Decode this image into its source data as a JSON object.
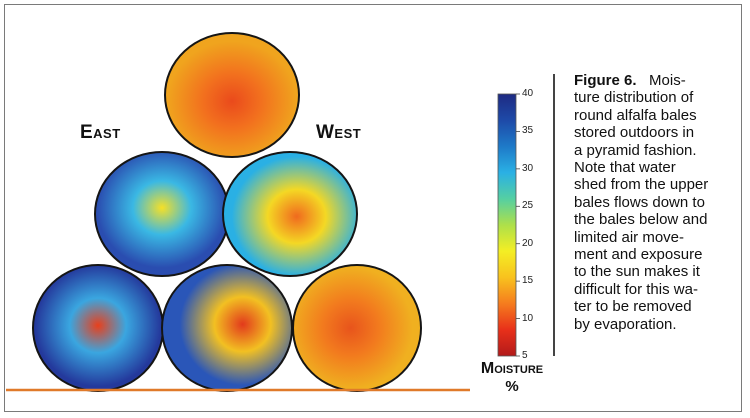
{
  "labels": {
    "east": "East",
    "west": "West"
  },
  "colorbar": {
    "title_line1": "Moisture",
    "title_line2": "%",
    "min": 5,
    "max": 40,
    "ticks": [
      "5",
      "10",
      "15",
      "20",
      "25",
      "30",
      "35",
      "40"
    ],
    "colors": [
      "#b21a1a",
      "#e8301a",
      "#f57c1e",
      "#f8c21e",
      "#f4ee24",
      "#aee04a",
      "#55cfa2",
      "#2ab0e4",
      "#1e7ac8",
      "#1e4aa8",
      "#1e2a82"
    ]
  },
  "caption": {
    "figure_label": "Figure 6.",
    "lines": [
      "Mois-",
      "ture distribution of",
      "round alfalfa bales",
      "stored outdoors in",
      "a pyramid fashion.",
      "Note that water",
      "shed from the upper",
      "bales flows down to",
      "the bales below and",
      "limited air move-",
      "ment and exposure",
      "to the sun makes it",
      "difficult for this wa-",
      "ter to be removed",
      "by evaporation."
    ]
  },
  "bales": [
    {
      "id": "top",
      "outer": "#f0a41e",
      "mid": "#f2701e",
      "core": "#ea4a1c"
    },
    {
      "id": "middle-east",
      "outer": "#2a4db0",
      "mid": "#3ab8e4",
      "core": "#f6e026"
    },
    {
      "id": "middle-west",
      "outer": "#2ab0e4",
      "mid": "#f4d824",
      "core": "#f06a1e"
    },
    {
      "id": "bottom-east",
      "outer": "#24399c",
      "mid": "#3aa6e0",
      "core": "#e8401c"
    },
    {
      "id": "bottom-center",
      "outer": "#2a56b8",
      "mid": "#f2c022",
      "core": "#e23a1c"
    },
    {
      "id": "bottom-west",
      "outer": "#f0b020",
      "mid": "#f27a1e",
      "core": "#e8541c"
    }
  ],
  "ground_color": "#e07a2a"
}
